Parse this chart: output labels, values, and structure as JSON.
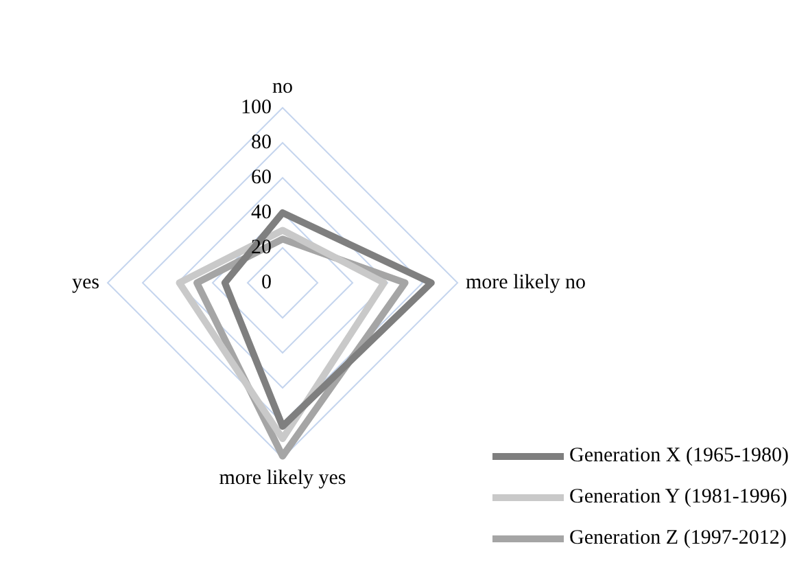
{
  "chart_data": {
    "type": "radar",
    "categories": [
      "no",
      "more likely no",
      "more likely yes",
      "yes"
    ],
    "series": [
      {
        "name": "Generation X (1965-1980)",
        "color": "#7f7f7f",
        "values": [
          40,
          85,
          82,
          33
        ]
      },
      {
        "name": "Generation Y (1981-1996)",
        "color": "#c9c9c9",
        "values": [
          30,
          58,
          89,
          59
        ]
      },
      {
        "name": "Generation Z (1997-2012)",
        "color": "#a5a5a5",
        "values": [
          25,
          70,
          99,
          49
        ]
      }
    ],
    "ylim": [
      0,
      100
    ],
    "yticks": [
      0,
      20,
      40,
      60,
      80,
      100
    ],
    "grid": true,
    "legend": "bottom right",
    "marker": "none",
    "line_style": "solid"
  }
}
